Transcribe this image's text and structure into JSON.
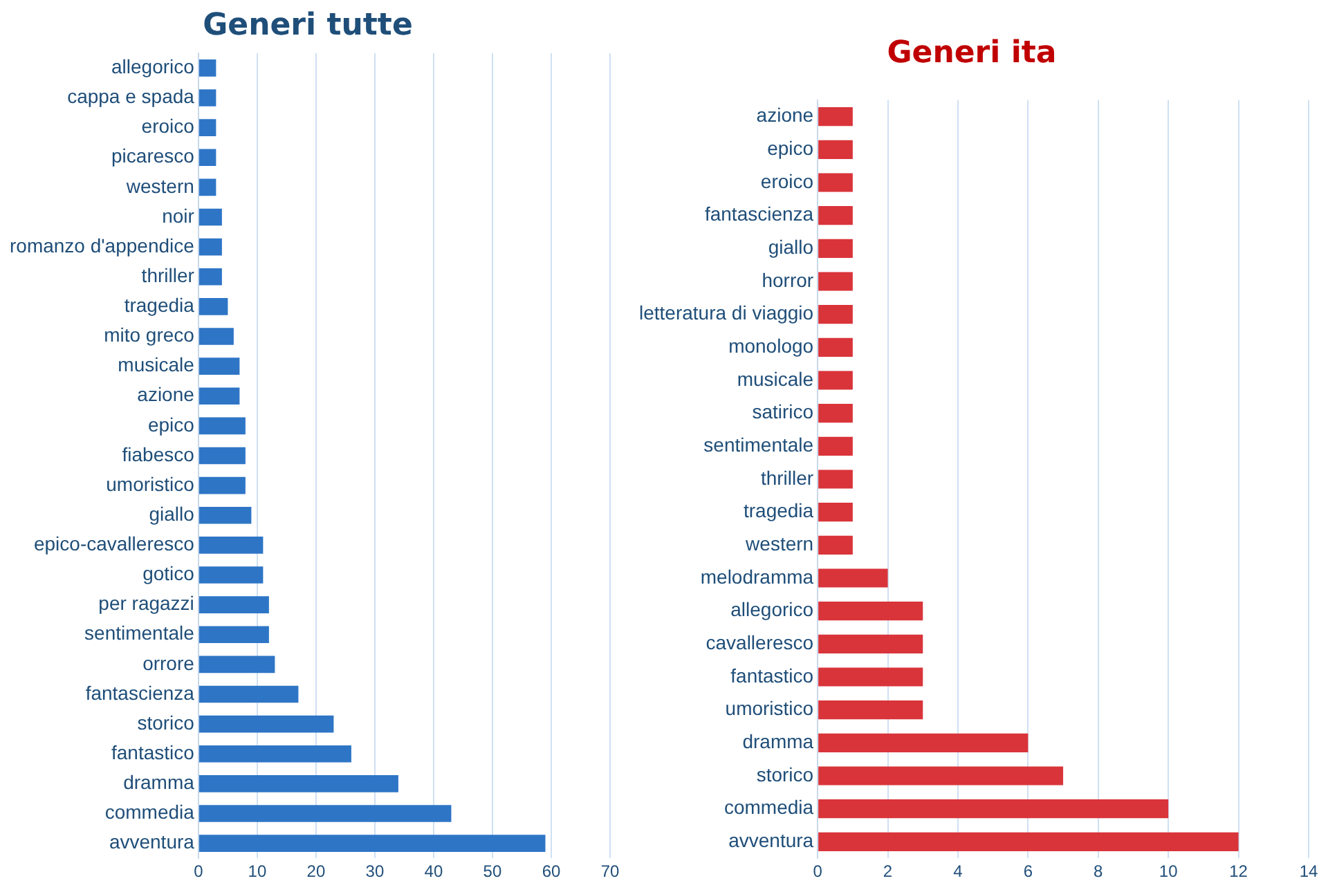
{
  "chart_data": [
    {
      "type": "bar",
      "title": "Generi tutte",
      "orientation": "horizontal",
      "grid": "x",
      "legend": false,
      "categories": [
        "allegorico",
        "cappa e spada",
        "eroico",
        "picaresco",
        "western",
        "noir",
        "romanzo d'appendice",
        "thriller",
        "tragedia",
        "mito greco",
        "musicale",
        "azione",
        "epico",
        "fiabesco",
        "umoristico",
        "giallo",
        "epico-cavalleresco",
        "gotico",
        "per ragazzi",
        "sentimentale",
        "orrore",
        "fantascienza",
        "storico",
        "fantastico",
        "dramma",
        "commedia",
        "avventura"
      ],
      "series": [
        {
          "color": "#2e75c6",
          "values": [
            3,
            3,
            3,
            3,
            3,
            4,
            4,
            4,
            5,
            6,
            7,
            7,
            8,
            8,
            8,
            9,
            11,
            11,
            12,
            12,
            13,
            17,
            23,
            26,
            34,
            43,
            59
          ]
        }
      ],
      "xlim": [
        0,
        70
      ],
      "xticks": [
        0,
        10,
        20,
        30,
        40,
        50,
        60,
        70
      ]
    },
    {
      "type": "bar",
      "title": "Generi ita",
      "orientation": "horizontal",
      "grid": "x",
      "legend": false,
      "categories": [
        "azione",
        "epico",
        "eroico",
        "fantascienza",
        "giallo",
        "horror",
        "letteratura di viaggio",
        "monologo",
        "musicale",
        "satirico",
        "sentimentale",
        "thriller",
        "tragedia",
        "western",
        "melodramma",
        "allegorico",
        "cavalleresco",
        "fantastico",
        "umoristico",
        "dramma",
        "storico",
        "commedia",
        "avventura"
      ],
      "series": [
        {
          "color": "#d9343a",
          "values": [
            1,
            1,
            1,
            1,
            1,
            1,
            1,
            1,
            1,
            1,
            1,
            1,
            1,
            1,
            2,
            3,
            3,
            3,
            3,
            6,
            7,
            10,
            12
          ]
        }
      ],
      "xlim": [
        0,
        14
      ],
      "xticks": [
        0,
        2,
        4,
        6,
        8,
        10,
        12,
        14
      ]
    }
  ]
}
